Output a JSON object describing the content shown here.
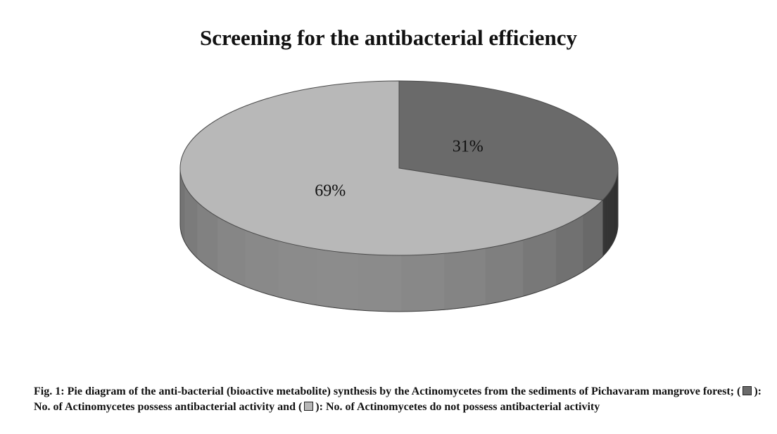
{
  "chart_data": {
    "type": "pie",
    "title": "Screening for the antibacterial efficiency",
    "slices": [
      {
        "label": "31%",
        "value": 31,
        "color": "#6a6a6a"
      },
      {
        "label": "69%",
        "value": 69,
        "color": "#b8b8b8"
      }
    ],
    "three_d": true
  },
  "caption": {
    "lead": "Fig. 1: Pie diagram of the anti-bacterial (bioactive metabolite) synthesis by the Actinomycetes from the sediments of Pichavaram mangrove forest; (",
    "legend_1": "): No. of Actinomycetes possess antibacterial activity and (",
    "legend_2": "): No. of Actinomycetes do not possess antibacterial activity",
    "swatch_1_color": "#6a6a6a",
    "swatch_2_color": "#b8b8b8"
  }
}
